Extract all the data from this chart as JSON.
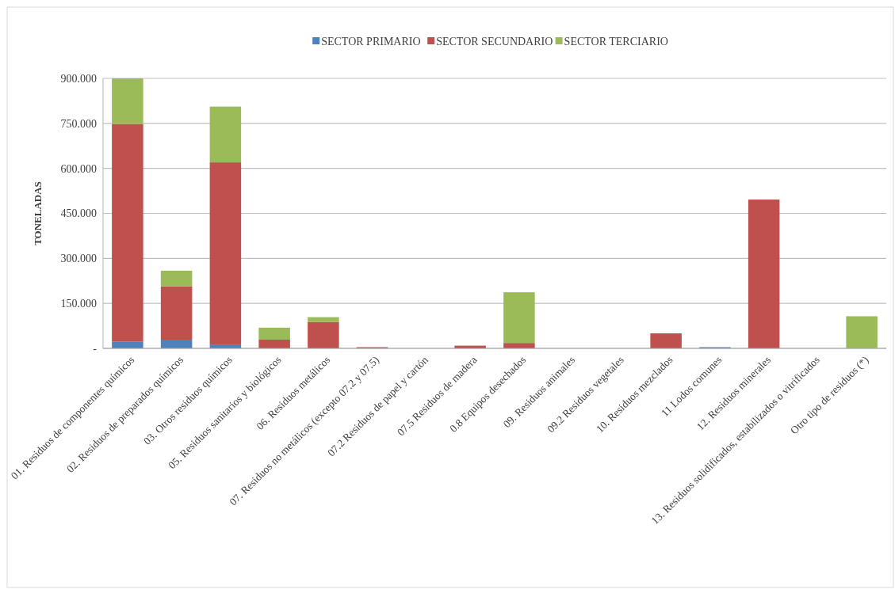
{
  "chart_data": {
    "type": "bar",
    "stacked": true,
    "ylabel": "TONELADAS",
    "legend": "top",
    "grid": "y",
    "categories": [
      "01. Residuos de componentes químicos",
      "02. Residuos de preparados químicos",
      "03. Otros residuos químicos",
      "05. Residuos sanitarios y biológicos",
      "06. Residuos metálicos",
      "07.  Residuos no metálicos (excepto 07.2 y 07.5)",
      "07.2 Residuos de papel y cartón",
      "07.5 Residuos de madera",
      "0.8 Equipos desechados",
      "09.  Residuos animales",
      "09.2 Residuos vegetales",
      "10.  Residuos mezclados",
      "11 Lodos comunes",
      "12. Residuos minerales",
      "13. Residuos solidificados, estabilizados o vitrificados",
      "Otro tipo de residuos (*)"
    ],
    "series": [
      {
        "name": "SECTOR PRIMARIO",
        "color": "#4f81bd",
        "values": [
          22,
          29,
          13,
          null,
          0,
          0,
          0,
          0,
          0,
          0,
          0,
          0,
          4,
          0,
          0,
          0
        ]
      },
      {
        "name": "SECTOR SECUNDARIO",
        "color": "#c0504d",
        "values": [
          726,
          178,
          607,
          29,
          88,
          4,
          0,
          9,
          18,
          0,
          0,
          50,
          0,
          496,
          null,
          0
        ]
      },
      {
        "name": "SECTOR TERCIARIO",
        "color": "#9bbb59",
        "values": [
          152,
          52,
          186,
          40,
          16,
          null,
          0,
          0,
          169,
          0,
          0,
          0,
          0,
          0,
          0,
          107
        ]
      }
    ],
    "ylim": [
      0,
      900
    ],
    "yticks": [
      {
        "value": 0,
        "label": "-"
      },
      {
        "value": 150,
        "label": "150.000"
      },
      {
        "value": 300,
        "label": "300.000"
      },
      {
        "value": 450,
        "label": "450.000"
      },
      {
        "value": 600,
        "label": "600.000"
      },
      {
        "value": 750,
        "label": "750.000"
      },
      {
        "value": 900,
        "label": "900.000"
      }
    ]
  }
}
